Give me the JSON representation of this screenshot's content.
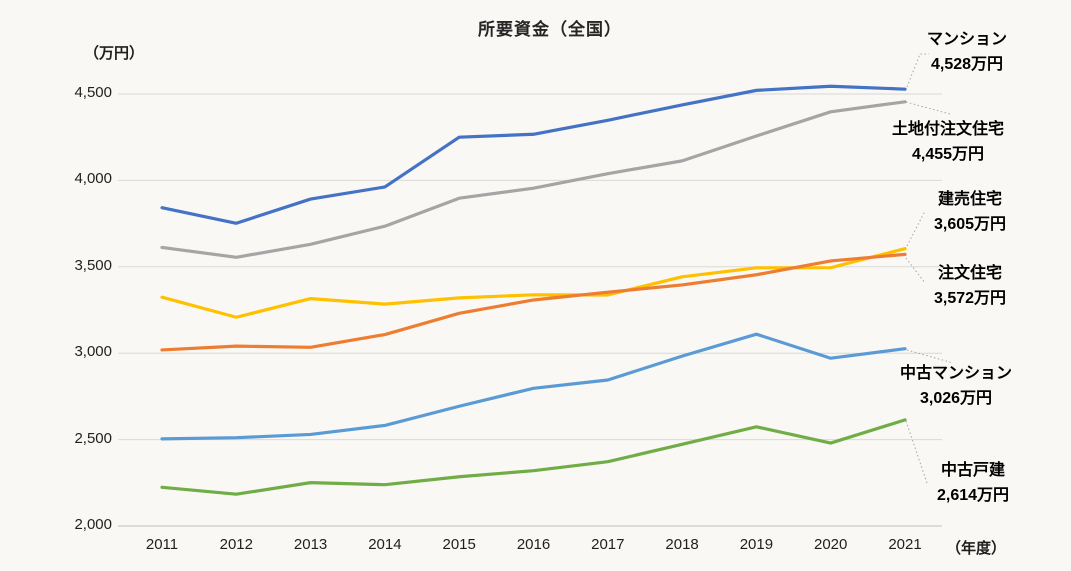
{
  "chart_data": {
    "type": "line",
    "title": "所要資金（全国）",
    "y_axis_unit": "（万円）",
    "x_axis_unit": "（年度）",
    "categories": [
      "2011",
      "2012",
      "2013",
      "2014",
      "2015",
      "2016",
      "2017",
      "2018",
      "2019",
      "2020",
      "2021"
    ],
    "y_ticks": [
      {
        "value": 4500,
        "label": "4,500"
      },
      {
        "value": 4000,
        "label": "4,000"
      },
      {
        "value": 3500,
        "label": "3,500"
      },
      {
        "value": 3000,
        "label": "3,000"
      },
      {
        "value": 2500,
        "label": "2,500"
      },
      {
        "value": 2000,
        "label": "2,000"
      }
    ],
    "ylim": [
      2000,
      4700
    ],
    "grid": true,
    "legend_position": "right-annotation-labels",
    "series": [
      {
        "key": "mansion",
        "name": "マンション",
        "value_label": "4,528万円",
        "color": "#4472C4",
        "values": [
          3842,
          3752,
          3892,
          3962,
          4250,
          4267,
          4348,
          4437,
          4521,
          4545,
          4528
        ]
      },
      {
        "key": "land-custom-house",
        "name": "土地付注文住宅",
        "value_label": "4,455万円",
        "color": "#A5A5A5",
        "values": [
          3612,
          3555,
          3630,
          3735,
          3897,
          3955,
          4039,
          4113,
          4257,
          4397,
          4455
        ]
      },
      {
        "key": "ready-built-house",
        "name": "建売住宅",
        "value_label": "3,605万円",
        "color": "#FFC000",
        "values": [
          3324,
          3208,
          3316,
          3284,
          3320,
          3338,
          3337,
          3442,
          3494,
          3495,
          3605
        ]
      },
      {
        "key": "custom-house",
        "name": "注文住宅",
        "value_label": "3,572万円",
        "color": "#ED7D31",
        "values": [
          3019,
          3041,
          3034,
          3108,
          3231,
          3308,
          3353,
          3395,
          3454,
          3534,
          3572
        ]
      },
      {
        "key": "used-mansion",
        "name": "中古マンション",
        "value_label": "3,026万円",
        "color": "#5B9BD5",
        "values": [
          2504,
          2511,
          2530,
          2582,
          2693,
          2797,
          2845,
          2983,
          3110,
          2971,
          3026
        ]
      },
      {
        "key": "used-detached-house",
        "name": "中古戸建",
        "value_label": "2,614万円",
        "color": "#70AD47",
        "values": [
          2224,
          2184,
          2251,
          2239,
          2285,
          2320,
          2372,
          2473,
          2574,
          2480,
          2614
        ]
      }
    ]
  }
}
